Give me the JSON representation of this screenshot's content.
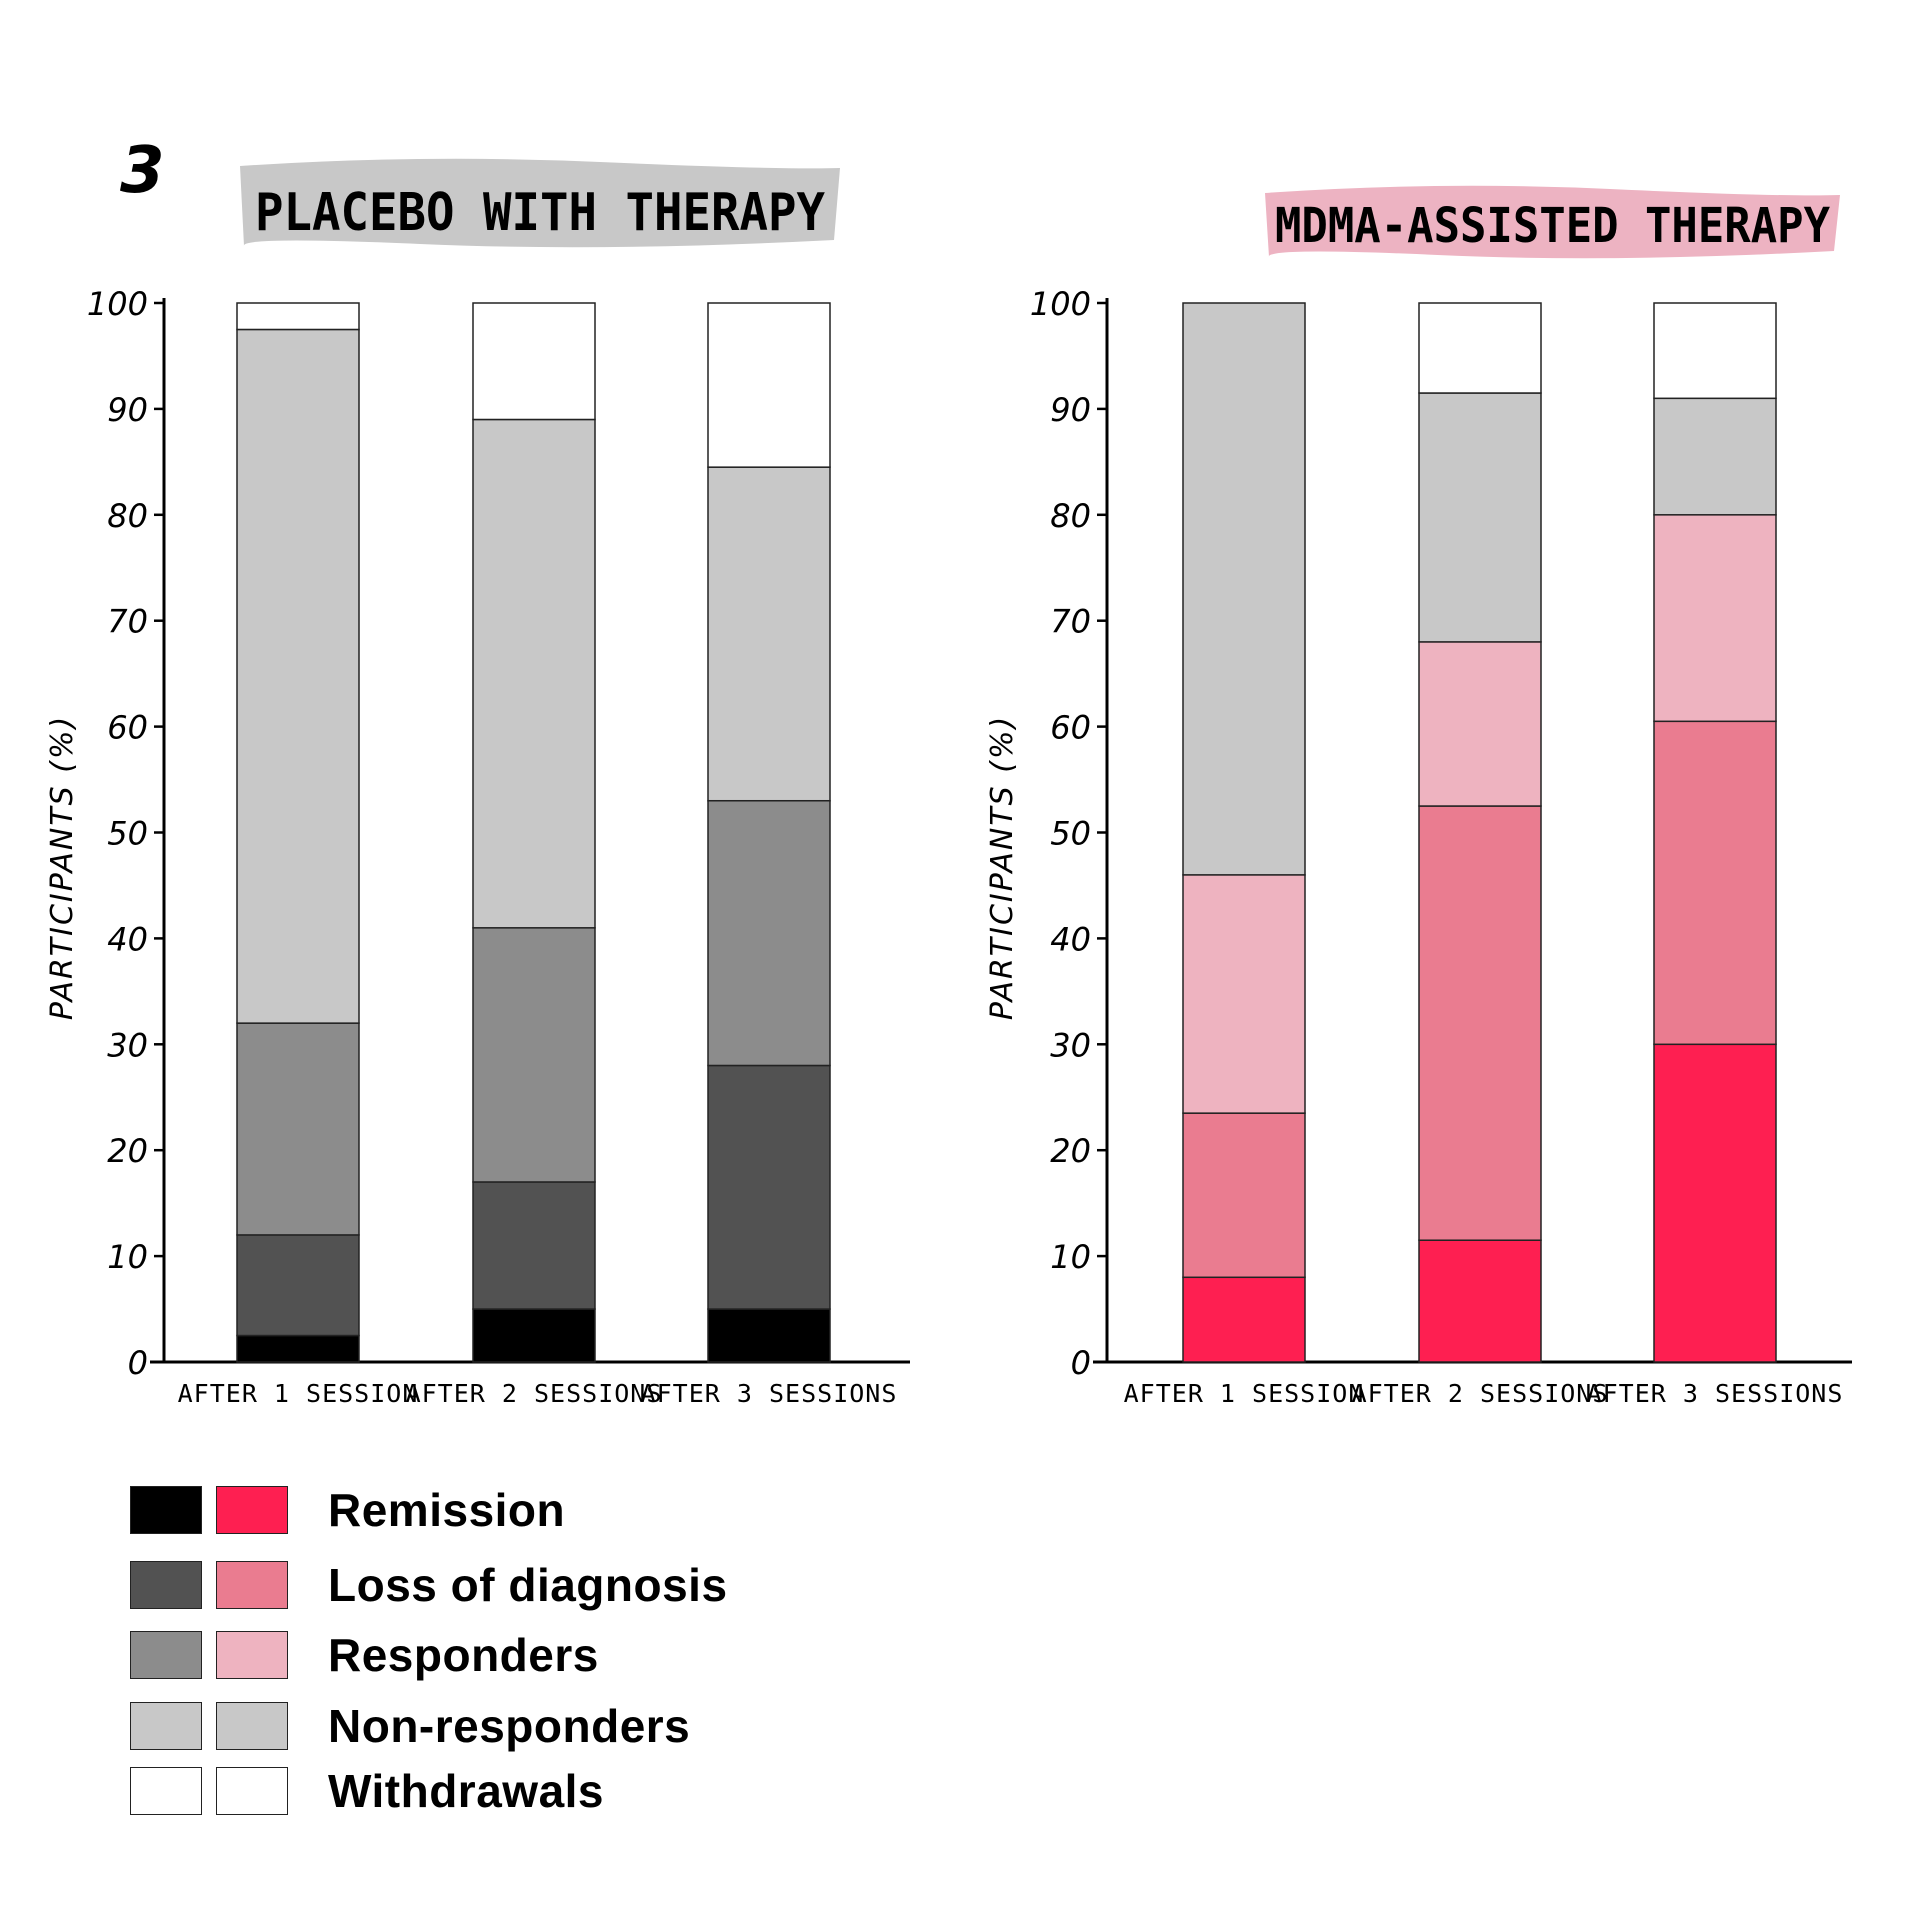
{
  "figure_number": "3",
  "chart_data": [
    {
      "type": "bar",
      "stacked": true,
      "title": "PLACEBO WITH THERAPY",
      "title_band_color": "#c8c8c8",
      "ylabel": "PARTICIPANTS (%)",
      "xlabel": "",
      "ylim": [
        0,
        100
      ],
      "yticks": [
        "0",
        "10",
        "20",
        "30",
        "40",
        "50",
        "60",
        "70",
        "80",
        "90",
        "100"
      ],
      "categories": [
        "AFTER 1 SESSION",
        "AFTER 2 SESSIONS",
        "AFTER 3 SESSIONS"
      ],
      "series": [
        {
          "name": "Remission",
          "color": "#000000",
          "values": [
            2.5,
            5,
            5
          ]
        },
        {
          "name": "Loss of diagnosis",
          "color": "#525252",
          "values": [
            9.5,
            12,
            23
          ]
        },
        {
          "name": "Responders",
          "color": "#8c8c8c",
          "values": [
            20,
            24,
            25
          ]
        },
        {
          "name": "Non-responders",
          "color": "#c8c8c8",
          "values": [
            65.5,
            48,
            31.5
          ]
        },
        {
          "name": "Withdrawals",
          "color": "#ffffff",
          "values": [
            2.5,
            11,
            15.5
          ]
        }
      ]
    },
    {
      "type": "bar",
      "stacked": true,
      "title": "MDMA-ASSISTED THERAPY",
      "title_band_color": "#edb3c2",
      "ylabel": "PARTICIPANTS (%)",
      "xlabel": "",
      "ylim": [
        0,
        100
      ],
      "yticks": [
        "0",
        "10",
        "20",
        "30",
        "40",
        "50",
        "60",
        "70",
        "80",
        "90",
        "100"
      ],
      "categories": [
        "AFTER 1 SESSION",
        "AFTER 2 SESSIONS",
        "AFTER 3 SESSIONS"
      ],
      "series": [
        {
          "name": "Remission",
          "color": "#fe1f51",
          "values": [
            8,
            11.5,
            30
          ]
        },
        {
          "name": "Loss of diagnosis",
          "color": "#ea7c90",
          "values": [
            15.5,
            41,
            30.5
          ]
        },
        {
          "name": "Responders",
          "color": "#eeb3c0",
          "values": [
            22.5,
            15.5,
            19.5
          ]
        },
        {
          "name": "Non-responders",
          "color": "#c8c8c8",
          "values": [
            54,
            23.5,
            11
          ]
        },
        {
          "name": "Withdrawals",
          "color": "#ffffff",
          "values": [
            0,
            8.5,
            9
          ]
        }
      ]
    }
  ],
  "legend": [
    {
      "label": "Remission",
      "colors": [
        "#000000",
        "#fe1f51"
      ]
    },
    {
      "label": "Loss of diagnosis",
      "colors": [
        "#525252",
        "#ea7c90"
      ]
    },
    {
      "label": "Responders",
      "colors": [
        "#8c8c8c",
        "#eeb3c0"
      ]
    },
    {
      "label": "Non-responders",
      "colors": [
        "#c8c8c8",
        "#c8c8c8"
      ]
    },
    {
      "label": "Withdrawals",
      "colors": [
        "#ffffff",
        "#ffffff"
      ]
    }
  ]
}
